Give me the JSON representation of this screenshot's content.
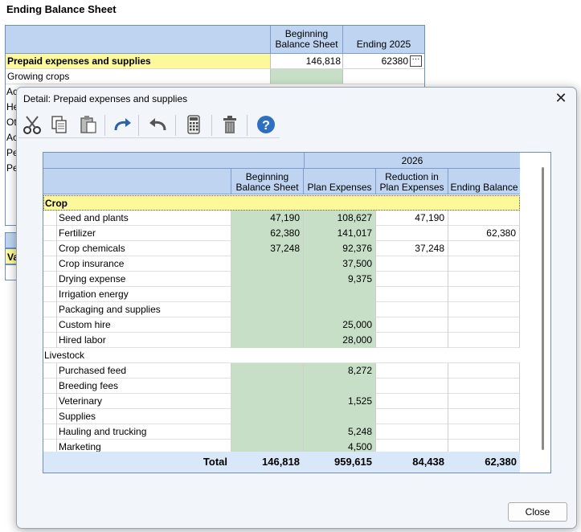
{
  "background": {
    "title": "Ending Balance Sheet",
    "headers": {
      "beginning": [
        "Beginning",
        "Balance Sheet"
      ],
      "ending": "Ending 2025"
    },
    "rows": [
      {
        "label": "Prepaid expenses and supplies",
        "beginning": "146,818",
        "ending": "62380"
      },
      {
        "label": "Growing crops",
        "beginning": "",
        "ending": ""
      }
    ],
    "side_fragments": [
      "Ac",
      "He",
      "Ot",
      "Ac",
      "Pe",
      "Pe"
    ],
    "lower_fragment": "Va"
  },
  "dialog": {
    "title": "Detail: Prepaid expenses and supplies",
    "close_label": "Close",
    "toolbar": [
      "cut-icon",
      "copy-icon",
      "paste-icon",
      "redo-icon",
      "undo-icon",
      "calculator-icon",
      "delete-icon",
      "help-icon"
    ],
    "grid": {
      "year": "2026",
      "columns": {
        "beginning": [
          "Beginning",
          "Balance Sheet"
        ],
        "plan": "Plan Expenses",
        "reduction": [
          "Reduction in",
          "Plan Expenses"
        ],
        "ending": "Ending Balance"
      },
      "groups": [
        {
          "name": "Crop",
          "rows": [
            {
              "name": "Seed and plants",
              "beginning": "47,190",
              "plan": "108,627",
              "reduction": "47,190",
              "ending": ""
            },
            {
              "name": "Fertilizer",
              "beginning": "62,380",
              "plan": "141,017",
              "reduction": "",
              "ending": "62,380"
            },
            {
              "name": "Crop chemicals",
              "beginning": "37,248",
              "plan": "92,376",
              "reduction": "37,248",
              "ending": ""
            },
            {
              "name": "Crop insurance",
              "beginning": "",
              "plan": "37,500",
              "reduction": "",
              "ending": ""
            },
            {
              "name": "Drying expense",
              "beginning": "",
              "plan": "9,375",
              "reduction": "",
              "ending": ""
            },
            {
              "name": "Irrigation energy",
              "beginning": "",
              "plan": "",
              "reduction": "",
              "ending": ""
            },
            {
              "name": "Packaging and supplies",
              "beginning": "",
              "plan": "",
              "reduction": "",
              "ending": ""
            },
            {
              "name": "Custom hire",
              "beginning": "",
              "plan": "25,000",
              "reduction": "",
              "ending": ""
            },
            {
              "name": "Hired labor",
              "beginning": "",
              "plan": "28,000",
              "reduction": "",
              "ending": ""
            }
          ]
        },
        {
          "name": "Livestock",
          "rows": [
            {
              "name": "Purchased feed",
              "beginning": "",
              "plan": "8,272",
              "reduction": "",
              "ending": ""
            },
            {
              "name": "Breeding fees",
              "beginning": "",
              "plan": "",
              "reduction": "",
              "ending": ""
            },
            {
              "name": "Veterinary",
              "beginning": "",
              "plan": "1,525",
              "reduction": "",
              "ending": ""
            },
            {
              "name": "Supplies",
              "beginning": "",
              "plan": "",
              "reduction": "",
              "ending": ""
            },
            {
              "name": "Hauling and trucking",
              "beginning": "",
              "plan": "5,248",
              "reduction": "",
              "ending": ""
            },
            {
              "name": "Marketing",
              "beginning": "",
              "plan": "4,500",
              "reduction": "",
              "ending": ""
            }
          ]
        }
      ],
      "total": {
        "label": "Total",
        "beginning": "146,818",
        "plan": "959,615",
        "reduction": "84,438",
        "ending": "62,380"
      }
    }
  }
}
